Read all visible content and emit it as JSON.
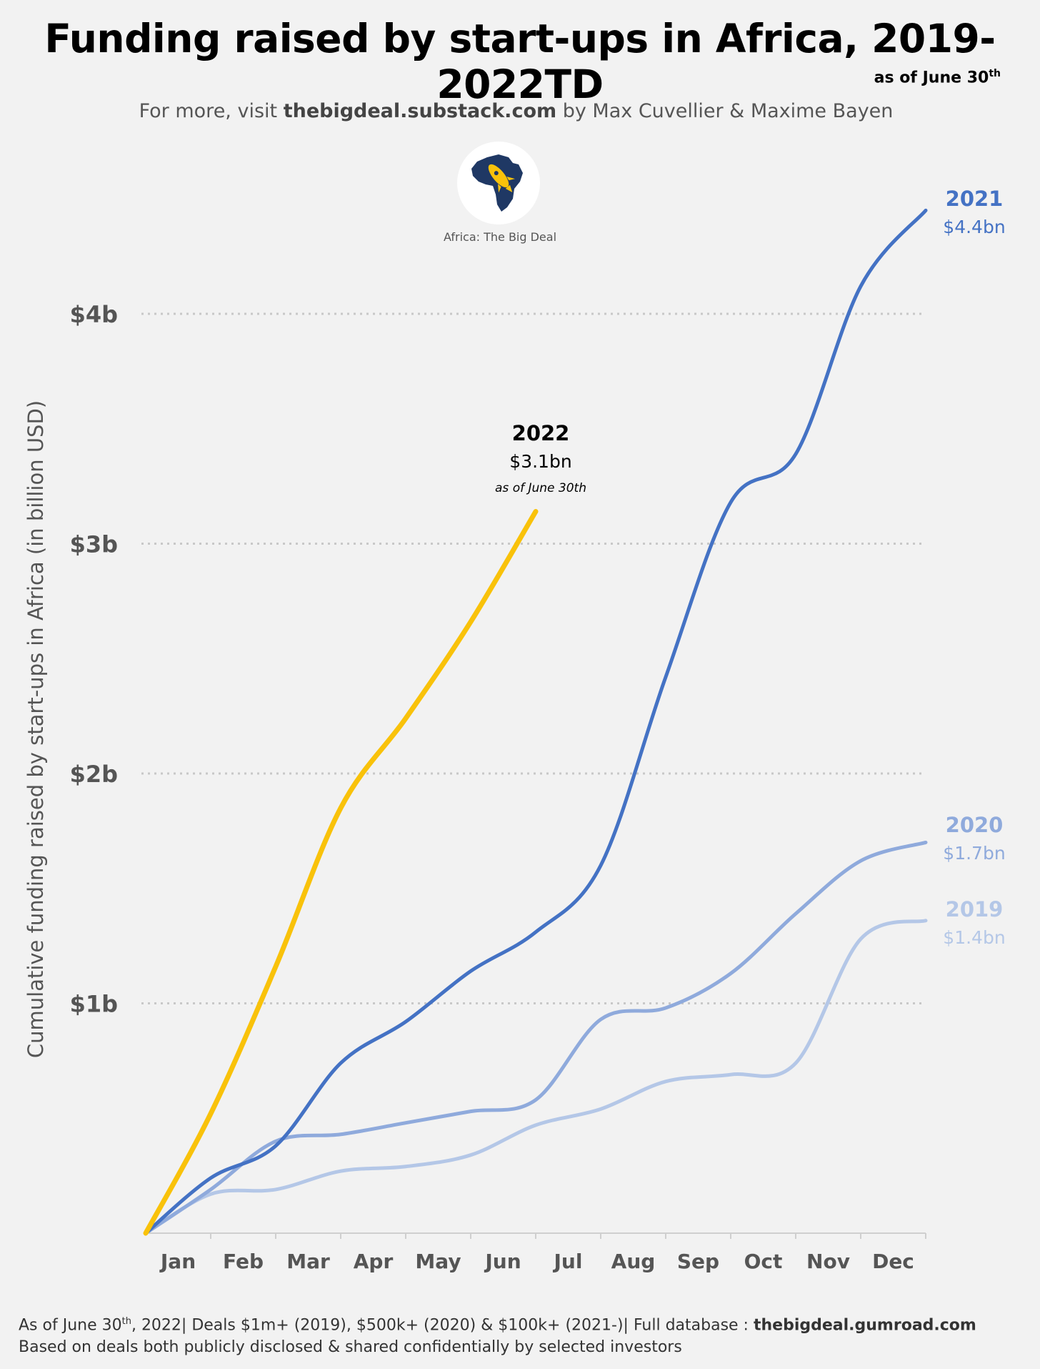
{
  "header": {
    "title": "Funding raised by start-ups in Africa, 2019-2022TD",
    "asof_main": "as of June 30",
    "asof_sup": "th",
    "subtitle_pre": "For more, visit ",
    "subtitle_link": "thebigdeal.substack.com",
    "subtitle_post": " by Max Cuvellier & Maxime Bayen"
  },
  "logo": {
    "icon": "africa-rocket-icon",
    "caption": "Africa: The Big Deal"
  },
  "footer": {
    "line1_a": "As of June 30",
    "line1_sup": "th",
    "line1_b": ", 2022| Deals $1m+ (2019), $500k+ (2020) & $100k+ (2021-)| Full database : ",
    "line1_link": "thebigdeal.gumroad.com",
    "line2": "Based on deals both publicly disclosed & shared confidentially by selected investors"
  },
  "chart_data": {
    "type": "line",
    "title": "Funding raised by start-ups in Africa, 2019-2022TD",
    "ylabel": "Cumulative funding raised by start-ups in Africa (in billion USD)",
    "xlabel": "",
    "ylim": [
      0,
      4.6
    ],
    "yticks": [
      {
        "value": 1,
        "label": "$1b"
      },
      {
        "value": 2,
        "label": "$2b"
      },
      {
        "value": 3,
        "label": "$3b"
      },
      {
        "value": 4,
        "label": "$4b"
      }
    ],
    "grid": "horizontal dotted",
    "categories": [
      "Jan",
      "Feb",
      "Mar",
      "Apr",
      "May",
      "Jun",
      "Jul",
      "Aug",
      "Sep",
      "Oct",
      "Nov",
      "Dec"
    ],
    "series": [
      {
        "name": "2019",
        "label_value": "$1.4bn",
        "color": "#b4c7e7",
        "x": [
          0,
          1,
          2,
          3,
          4,
          5,
          6,
          7,
          8,
          9,
          10,
          11,
          12
        ],
        "values": [
          0,
          0.17,
          0.19,
          0.27,
          0.29,
          0.34,
          0.47,
          0.54,
          0.66,
          0.69,
          0.74,
          1.28,
          1.36
        ]
      },
      {
        "name": "2020",
        "label_value": "$1.7bn",
        "color": "#8faadc",
        "x": [
          0,
          1,
          2,
          3,
          4,
          5,
          6,
          7,
          8,
          9,
          10,
          11,
          12
        ],
        "values": [
          0,
          0.19,
          0.4,
          0.43,
          0.48,
          0.53,
          0.58,
          0.93,
          0.98,
          1.13,
          1.39,
          1.62,
          1.7
        ]
      },
      {
        "name": "2021",
        "label_value": "$4.4bn",
        "color": "#4472c4",
        "x": [
          0,
          1,
          2,
          3,
          4,
          5,
          6,
          7,
          8,
          9,
          10,
          11,
          12
        ],
        "values": [
          0,
          0.24,
          0.38,
          0.74,
          0.92,
          1.14,
          1.31,
          1.6,
          2.42,
          3.18,
          3.39,
          4.12,
          4.45
        ]
      },
      {
        "name": "2022",
        "label_value": "$3.1bn",
        "label_note": "as of June 30th",
        "color": "#f9c20a",
        "x": [
          0,
          1,
          2,
          3,
          4,
          5,
          6
        ],
        "values": [
          0,
          0.52,
          1.16,
          1.85,
          2.24,
          2.66,
          3.14
        ]
      }
    ]
  }
}
